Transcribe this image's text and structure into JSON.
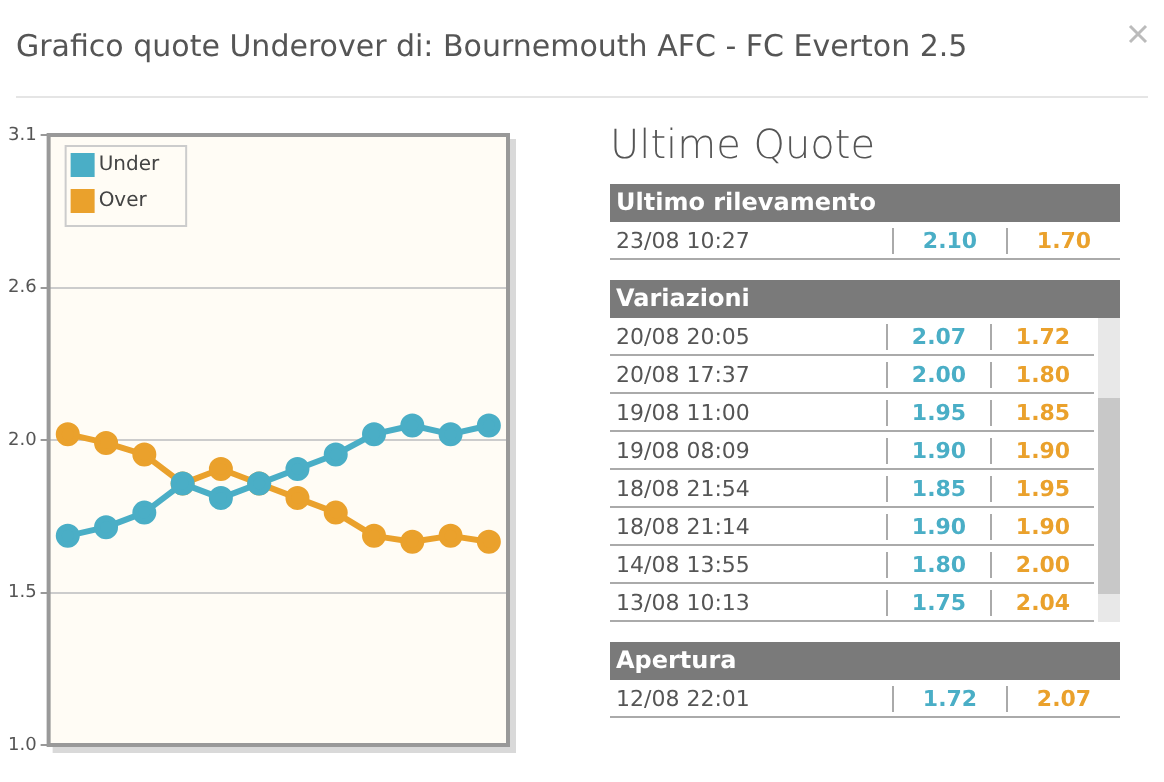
{
  "chart_data": [
    {
      "type": "line",
      "title": "Grafico quote Underover di: Bournemouth AFC - FC Everton 2.5",
      "categories": [
        null,
        null,
        null,
        null,
        null,
        null,
        null,
        null,
        null,
        null,
        null,
        null
      ],
      "series": [
        {
          "name": "Under",
          "color": "#4aaec6",
          "values": [
            1.72,
            1.75,
            1.8,
            1.9,
            1.85,
            1.9,
            1.95,
            2.0,
            2.07,
            2.1,
            2.07,
            2.1
          ]
        },
        {
          "name": "Over",
          "color": "#eaa12c",
          "values": [
            2.07,
            2.04,
            2.0,
            1.9,
            1.95,
            1.9,
            1.85,
            1.8,
            1.72,
            1.7,
            1.72,
            1.7
          ]
        }
      ],
      "ylim": [
        1.0,
        3.1
      ],
      "yticks": [
        {
          "value": 1.0,
          "label": "1.0"
        },
        {
          "value": 1.525,
          "label": "1.5"
        },
        {
          "value": 2.05,
          "label": "2.0"
        },
        {
          "value": 2.575,
          "label": "2.6"
        },
        {
          "value": 3.1,
          "label": "3.1"
        }
      ],
      "grid": "y",
      "legend": "top left",
      "marker": "circle",
      "tick_labels": "y"
    },
    {
      "type": "other",
      "title": "Ultime Quote",
      "annotations": [
        "Ultimo rilevamento",
        "Variazioni",
        "Apertura"
      ],
      "categories": [
        "23/08 10:27",
        "20/08 20:05",
        "20/08 17:37",
        "19/08 11:00",
        "19/08 08:09",
        "18/08 21:54",
        "18/08 21:14",
        "14/08 13:55",
        "13/08 10:13",
        "12/08 22:01"
      ],
      "series": [
        {
          "color": "#4aaec6",
          "values": [
            2.1,
            2.07,
            2.0,
            1.95,
            1.9,
            1.85,
            1.9,
            1.8,
            1.75,
            1.72
          ],
          "value_labels": [
            "2.10",
            "2.07",
            "2.00",
            "1.95",
            "1.90",
            "1.85",
            "1.90",
            "1.80",
            "1.75",
            "1.72"
          ]
        },
        {
          "color": "#eaa12c",
          "values": [
            1.7,
            1.72,
            1.8,
            1.85,
            1.9,
            1.95,
            1.9,
            2.0,
            2.04,
            2.07
          ],
          "value_labels": [
            "1.70",
            "1.72",
            "1.80",
            "1.85",
            "1.90",
            "1.95",
            "1.90",
            "2.00",
            "2.04",
            "2.07"
          ]
        }
      ]
    }
  ]
}
